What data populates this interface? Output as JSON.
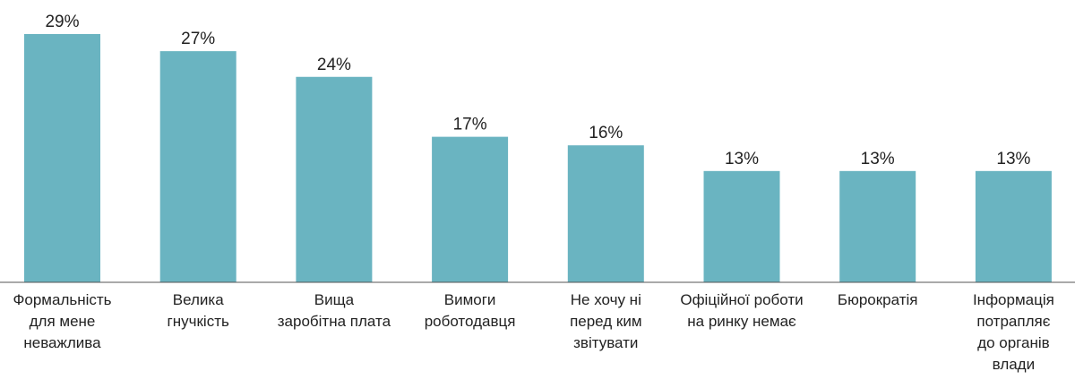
{
  "chart_data": {
    "type": "bar",
    "categories": [
      [
        "Формальність",
        "для мене",
        "неважлива"
      ],
      [
        "Велика",
        "гнучкість"
      ],
      [
        "Вища",
        "заробітна плата"
      ],
      [
        "Вимоги",
        "роботодавця"
      ],
      [
        "Не хочу ні",
        "перед ким",
        "звітувати"
      ],
      [
        "Офіційної роботи",
        "на ринку немає"
      ],
      [
        "Бюрократія"
      ],
      [
        "Інформація",
        "потрапляє",
        "до органів",
        "влади"
      ]
    ],
    "values": [
      29,
      27,
      24,
      17,
      16,
      13,
      13,
      13
    ],
    "value_labels": [
      "29%",
      "27%",
      "24%",
      "17%",
      "16%",
      "13%",
      "13%",
      "13%"
    ],
    "ylim": [
      0,
      29
    ],
    "bar_color": "#6ab4c1",
    "grid": false,
    "legend": "none"
  }
}
